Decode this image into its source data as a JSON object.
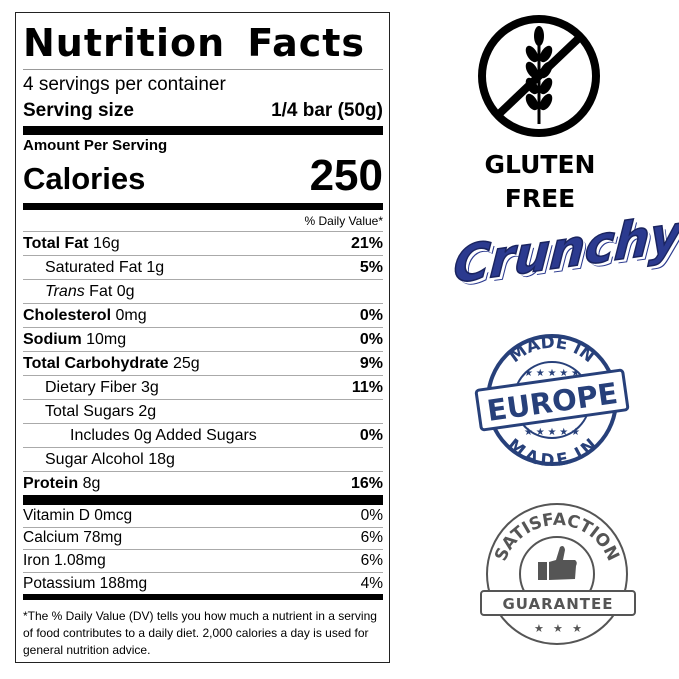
{
  "label": {
    "title": "Nutrition Facts",
    "servings": "4 servings per container",
    "serving_size_label": "Serving size",
    "serving_size_value": "1/4 bar (50g)",
    "amount_per_serving": "Amount Per Serving",
    "calories_label": "Calories",
    "calories_value": "250",
    "daily_value_header": "% Daily Value*",
    "nutrients": [
      {
        "name": "Total Fat",
        "amount": "16g",
        "dv": "21%"
      },
      {
        "name": "Saturated Fat",
        "amount": "1g",
        "dv": "5%"
      },
      {
        "name": "Trans",
        "name2": "Fat",
        "amount": "0g",
        "dv": ""
      },
      {
        "name": "Cholesterol",
        "amount": "0mg",
        "dv": "0%"
      },
      {
        "name": "Sodium",
        "amount": "10mg",
        "dv": "0%"
      },
      {
        "name": "Total Carbohydrate",
        "amount": "25g",
        "dv": "9%"
      },
      {
        "name": "Dietary Fiber",
        "amount": "3g",
        "dv": "11%"
      },
      {
        "name": "Total Sugars",
        "amount": "2g",
        "dv": ""
      },
      {
        "name": "Includes 0g Added Sugars",
        "amount": "",
        "dv": "0%"
      },
      {
        "name": "Sugar Alcohol",
        "amount": "18g",
        "dv": ""
      },
      {
        "name": "Protein",
        "amount": "8g",
        "dv": "16%"
      }
    ],
    "vitamins": [
      {
        "name": "Vitamin D 0mcg",
        "dv": "0%"
      },
      {
        "name": "Calcium 78mg",
        "dv": "6%"
      },
      {
        "name": "Iron 1.08mg",
        "dv": "6%"
      },
      {
        "name": "Potassium 188mg",
        "dv": "4%"
      }
    ],
    "footnote": "*The % Daily Value (DV) tells you how much a nutrient in a serving of food contributes to a daily diet. 2,000 calories a day is used for general nutrition advice."
  },
  "badges": {
    "gluten_free": {
      "line1": "GLUTEN",
      "line2": "FREE",
      "icon": "no-wheat-icon"
    },
    "crunchy": {
      "text": "Crunchy",
      "color": "#2b3a8f"
    },
    "made_in_europe": {
      "top": "MADE IN",
      "center": "EUROPE",
      "bottom": "MADE IN",
      "color": "#27407a"
    },
    "satisfaction": {
      "top": "SATISFACTION",
      "ribbon": "GUARANTEE",
      "icon": "thumbs-up-icon",
      "color": "#555555"
    }
  }
}
